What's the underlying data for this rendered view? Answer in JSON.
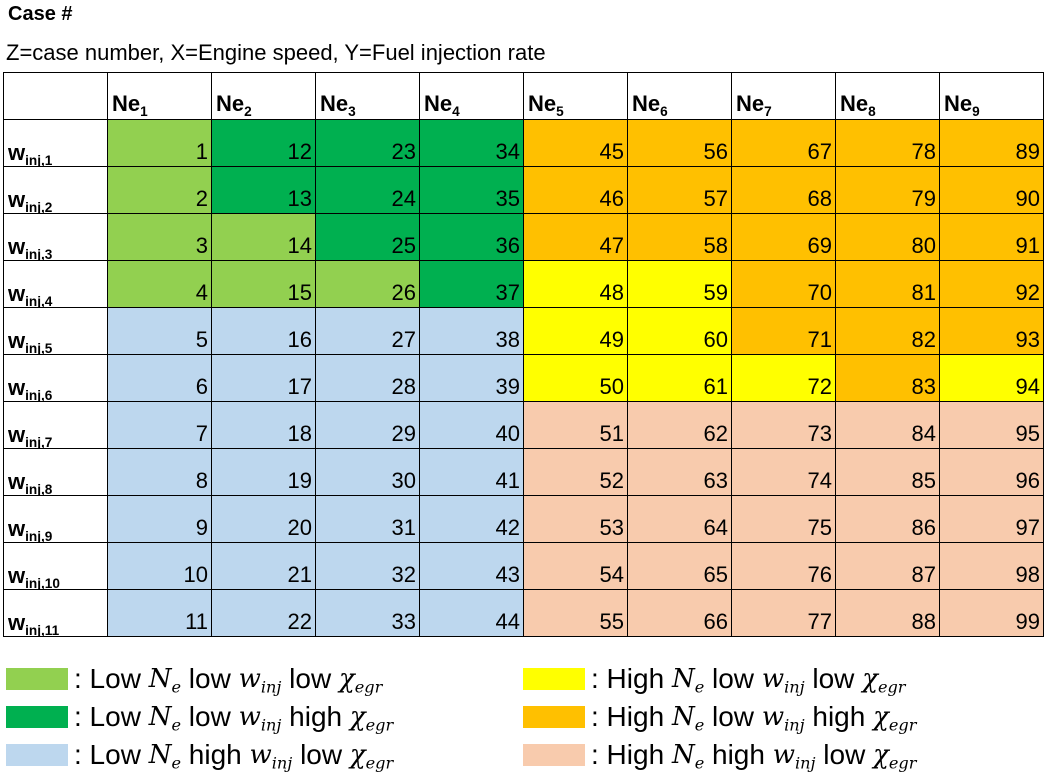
{
  "title": "Case #",
  "subtitle": "Z=case number, X=Engine speed, Y=Fuel injection rate",
  "colors": {
    "light_green": "#92d050",
    "dark_green": "#00b050",
    "light_blue": "#bdd7ee",
    "yellow": "#ffff00",
    "orange": "#ffc000",
    "peach": "#f8cbad"
  },
  "columns": [
    {
      "base": "Ne",
      "sub": "1"
    },
    {
      "base": "Ne",
      "sub": "2"
    },
    {
      "base": "Ne",
      "sub": "3"
    },
    {
      "base": "Ne",
      "sub": "4"
    },
    {
      "base": "Ne",
      "sub": "5"
    },
    {
      "base": "Ne",
      "sub": "6"
    },
    {
      "base": "Ne",
      "sub": "7"
    },
    {
      "base": "Ne",
      "sub": "8"
    },
    {
      "base": "Ne",
      "sub": "9"
    }
  ],
  "rows": [
    {
      "label": {
        "base": "w",
        "sub": "inj,1"
      },
      "cells": [
        1,
        12,
        23,
        34,
        45,
        56,
        67,
        78,
        89
      ],
      "colors": [
        "light_green",
        "dark_green",
        "dark_green",
        "dark_green",
        "orange",
        "orange",
        "orange",
        "orange",
        "orange"
      ]
    },
    {
      "label": {
        "base": "w",
        "sub": "inj,2"
      },
      "cells": [
        2,
        13,
        24,
        35,
        46,
        57,
        68,
        79,
        90
      ],
      "colors": [
        "light_green",
        "dark_green",
        "dark_green",
        "dark_green",
        "orange",
        "orange",
        "orange",
        "orange",
        "orange"
      ]
    },
    {
      "label": {
        "base": "w",
        "sub": "inj,3"
      },
      "cells": [
        3,
        14,
        25,
        36,
        47,
        58,
        69,
        80,
        91
      ],
      "colors": [
        "light_green",
        "light_green",
        "dark_green",
        "dark_green",
        "orange",
        "orange",
        "orange",
        "orange",
        "orange"
      ]
    },
    {
      "label": {
        "base": "w",
        "sub": "inj,4"
      },
      "cells": [
        4,
        15,
        26,
        37,
        48,
        59,
        70,
        81,
        92
      ],
      "colors": [
        "light_green",
        "light_green",
        "light_green",
        "dark_green",
        "yellow",
        "yellow",
        "orange",
        "orange",
        "orange"
      ]
    },
    {
      "label": {
        "base": "w",
        "sub": "inj,5"
      },
      "cells": [
        5,
        16,
        27,
        38,
        49,
        60,
        71,
        82,
        93
      ],
      "colors": [
        "light_blue",
        "light_blue",
        "light_blue",
        "light_blue",
        "yellow",
        "yellow",
        "orange",
        "orange",
        "orange"
      ]
    },
    {
      "label": {
        "base": "w",
        "sub": "inj,6"
      },
      "cells": [
        6,
        17,
        28,
        39,
        50,
        61,
        72,
        83,
        94
      ],
      "colors": [
        "light_blue",
        "light_blue",
        "light_blue",
        "light_blue",
        "yellow",
        "yellow",
        "yellow",
        "orange",
        "yellow"
      ]
    },
    {
      "label": {
        "base": "w",
        "sub": "inj,7"
      },
      "cells": [
        7,
        18,
        29,
        40,
        51,
        62,
        73,
        84,
        95
      ],
      "colors": [
        "light_blue",
        "light_blue",
        "light_blue",
        "light_blue",
        "peach",
        "peach",
        "peach",
        "peach",
        "peach"
      ]
    },
    {
      "label": {
        "base": "w",
        "sub": "inj,8"
      },
      "cells": [
        8,
        19,
        30,
        41,
        52,
        63,
        74,
        85,
        96
      ],
      "colors": [
        "light_blue",
        "light_blue",
        "light_blue",
        "light_blue",
        "peach",
        "peach",
        "peach",
        "peach",
        "peach"
      ]
    },
    {
      "label": {
        "base": "w",
        "sub": "inj,9"
      },
      "cells": [
        9,
        20,
        31,
        42,
        53,
        64,
        75,
        86,
        97
      ],
      "colors": [
        "light_blue",
        "light_blue",
        "light_blue",
        "light_blue",
        "peach",
        "peach",
        "peach",
        "peach",
        "peach"
      ]
    },
    {
      "label": {
        "base": "w",
        "sub": "inj,10"
      },
      "cells": [
        10,
        21,
        32,
        43,
        54,
        65,
        76,
        87,
        98
      ],
      "colors": [
        "light_blue",
        "light_blue",
        "light_blue",
        "light_blue",
        "peach",
        "peach",
        "peach",
        "peach",
        "peach"
      ]
    },
    {
      "label": {
        "base": "w",
        "sub": "inj,11"
      },
      "cells": [
        11,
        22,
        33,
        44,
        55,
        66,
        77,
        88,
        99
      ],
      "colors": [
        "light_blue",
        "light_blue",
        "light_blue",
        "light_blue",
        "peach",
        "peach",
        "peach",
        "peach",
        "peach"
      ]
    }
  ],
  "legend": [
    {
      "color": "light_green",
      "prefix": ": Low",
      "ne": "N",
      "ne_sub": "e",
      "w_word": "low",
      "w": "w",
      "w_sub": "inj",
      "x_word": "low",
      "x": "χ",
      "x_sub": "egr"
    },
    {
      "color": "dark_green",
      "prefix": ": Low",
      "ne": "N",
      "ne_sub": "e",
      "w_word": "low",
      "w": "w",
      "w_sub": "inj",
      "x_word": "high",
      "x": "χ",
      "x_sub": "egr"
    },
    {
      "color": "light_blue",
      "prefix": ": Low",
      "ne": "N",
      "ne_sub": "e",
      "w_word": "high",
      "w": "w",
      "w_sub": "inj",
      "x_word": "low",
      "x": "χ",
      "x_sub": "egr"
    },
    {
      "color": "yellow",
      "prefix": ": High",
      "ne": "N",
      "ne_sub": "e",
      "w_word": "low",
      "w": "w",
      "w_sub": "inj",
      "x_word": "low",
      "x": "χ",
      "x_sub": "egr"
    },
    {
      "color": "orange",
      "prefix": ": High",
      "ne": "N",
      "ne_sub": "e",
      "w_word": "low",
      "w": "w",
      "w_sub": "inj",
      "x_word": "high",
      "x": "χ",
      "x_sub": "egr"
    },
    {
      "color": "peach",
      "prefix": ": High",
      "ne": "N",
      "ne_sub": "e",
      "w_word": "high",
      "w": "w",
      "w_sub": "inj",
      "x_word": "low",
      "x": "χ",
      "x_sub": "egr"
    }
  ]
}
